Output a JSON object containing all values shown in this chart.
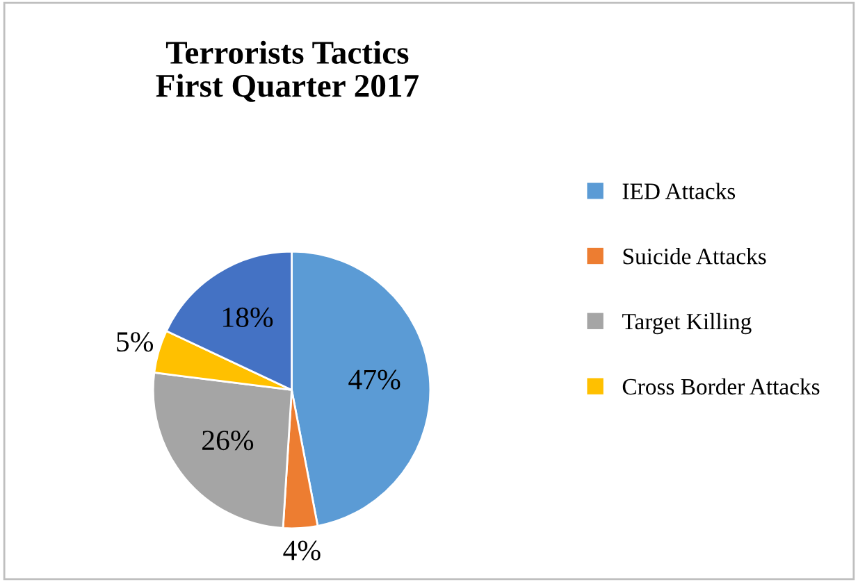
{
  "chart_data": {
    "type": "pie",
    "title": "Terrorists Tactics\nFirst Quarter 2017",
    "categories": [
      "IED Attacks",
      "Suicide Attacks",
      "Target Killing",
      "Cross Border Attacks",
      null
    ],
    "values": [
      47,
      4,
      26,
      5,
      18
    ],
    "colors": [
      "#5b9bd5",
      "#ed7d31",
      "#a5a5a5",
      "#ffc000",
      "#4472c4"
    ],
    "value_labels": [
      "47%",
      "4%",
      "26%",
      "5%",
      "18%"
    ],
    "legend": "right"
  }
}
